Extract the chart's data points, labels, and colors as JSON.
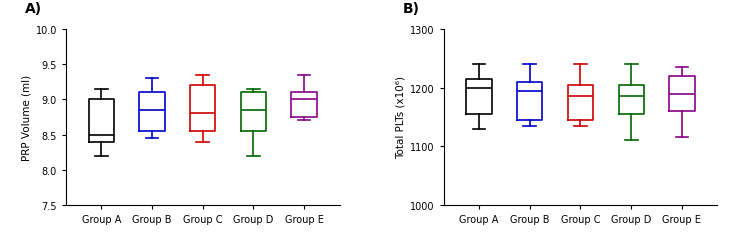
{
  "panel_A": {
    "label": "A)",
    "ylabel": "PRP Volume (ml)",
    "ylim": [
      7.5,
      10.0
    ],
    "yticks": [
      7.5,
      8.0,
      8.5,
      9.0,
      9.5,
      10.0
    ],
    "groups": [
      "Group A",
      "Group B",
      "Group C",
      "Group D",
      "Group E"
    ],
    "colors": [
      "#000000",
      "#0000cc",
      "#cc0000",
      "#006600",
      "#880088"
    ],
    "boxes": [
      {
        "whislo": 8.2,
        "q1": 8.4,
        "med": 8.5,
        "q3": 9.0,
        "whishi": 9.15
      },
      {
        "whislo": 8.45,
        "q1": 8.55,
        "med": 8.85,
        "q3": 9.1,
        "whishi": 9.3
      },
      {
        "whislo": 8.4,
        "q1": 8.55,
        "med": 8.8,
        "q3": 9.2,
        "whishi": 9.35
      },
      {
        "whislo": 8.2,
        "q1": 8.55,
        "med": 8.85,
        "q3": 9.1,
        "whishi": 9.15
      },
      {
        "whislo": 8.7,
        "q1": 8.75,
        "med": 9.0,
        "q3": 9.1,
        "whishi": 9.35
      }
    ]
  },
  "panel_B": {
    "label": "B)",
    "ylabel": "Total PLTs (x10⁶)",
    "ylim": [
      1000,
      1300
    ],
    "yticks": [
      1000,
      1100,
      1200,
      1300
    ],
    "groups": [
      "Group A",
      "Group B",
      "Group C",
      "Group D",
      "Group E"
    ],
    "colors": [
      "#000000",
      "#0000cc",
      "#cc0000",
      "#006600",
      "#880088"
    ],
    "boxes": [
      {
        "whislo": 1130,
        "q1": 1155,
        "med": 1200,
        "q3": 1215,
        "whishi": 1240
      },
      {
        "whislo": 1135,
        "q1": 1145,
        "med": 1195,
        "q3": 1210,
        "whishi": 1240
      },
      {
        "whislo": 1135,
        "q1": 1145,
        "med": 1185,
        "q3": 1205,
        "whishi": 1240
      },
      {
        "whislo": 1110,
        "q1": 1155,
        "med": 1185,
        "q3": 1205,
        "whishi": 1240
      },
      {
        "whislo": 1115,
        "q1": 1160,
        "med": 1190,
        "q3": 1220,
        "whishi": 1235
      }
    ]
  },
  "tick_fontsize": 7,
  "label_fontsize": 7.5,
  "panel_label_fontsize": 10,
  "linewidth": 1.2,
  "box_width": 0.5
}
